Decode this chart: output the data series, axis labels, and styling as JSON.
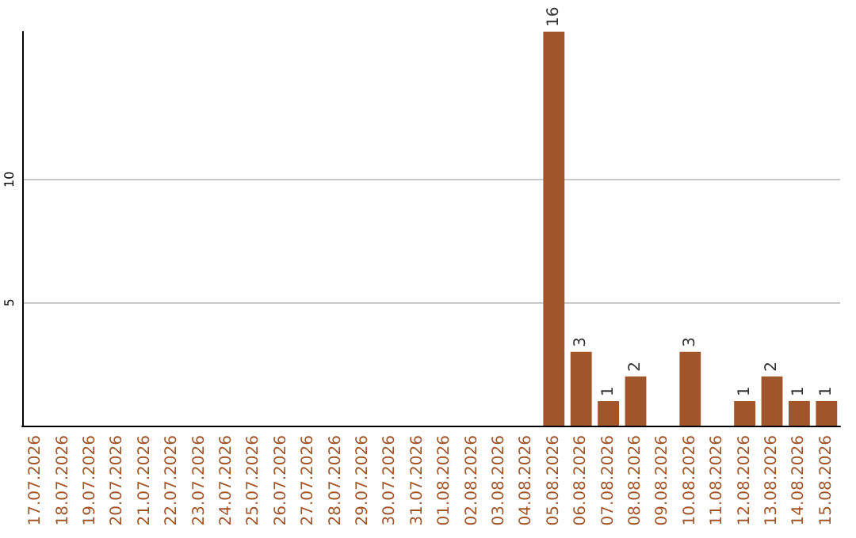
{
  "chart_data": {
    "type": "bar",
    "categories": [
      "17.07.2026",
      "18.07.2026",
      "19.07.2026",
      "20.07.2026",
      "21.07.2026",
      "22.07.2026",
      "23.07.2026",
      "24.07.2026",
      "25.07.2026",
      "26.07.2026",
      "27.07.2026",
      "28.07.2026",
      "29.07.2026",
      "30.07.2026",
      "31.07.2026",
      "01.08.2026",
      "02.08.2026",
      "03.08.2026",
      "04.08.2026",
      "05.08.2026",
      "06.08.2026",
      "07.08.2026",
      "08.08.2026",
      "09.08.2026",
      "10.08.2026",
      "11.08.2026",
      "12.08.2026",
      "13.08.2026",
      "14.08.2026",
      "15.08.2026"
    ],
    "values": [
      0,
      0,
      0,
      0,
      0,
      0,
      0,
      0,
      0,
      0,
      0,
      0,
      0,
      0,
      0,
      0,
      0,
      0,
      0,
      16,
      3,
      1,
      2,
      0,
      3,
      0,
      1,
      2,
      1,
      1
    ],
    "value_labels": [
      null,
      null,
      null,
      null,
      null,
      null,
      null,
      null,
      null,
      null,
      null,
      null,
      null,
      null,
      null,
      null,
      null,
      null,
      null,
      "16",
      "3",
      "1",
      "2",
      null,
      "3",
      null,
      "1",
      "2",
      "1",
      "1"
    ],
    "color": "#a0562a",
    "ylim": [
      0,
      16
    ],
    "yticks": [
      5,
      10
    ],
    "grid": "y"
  }
}
